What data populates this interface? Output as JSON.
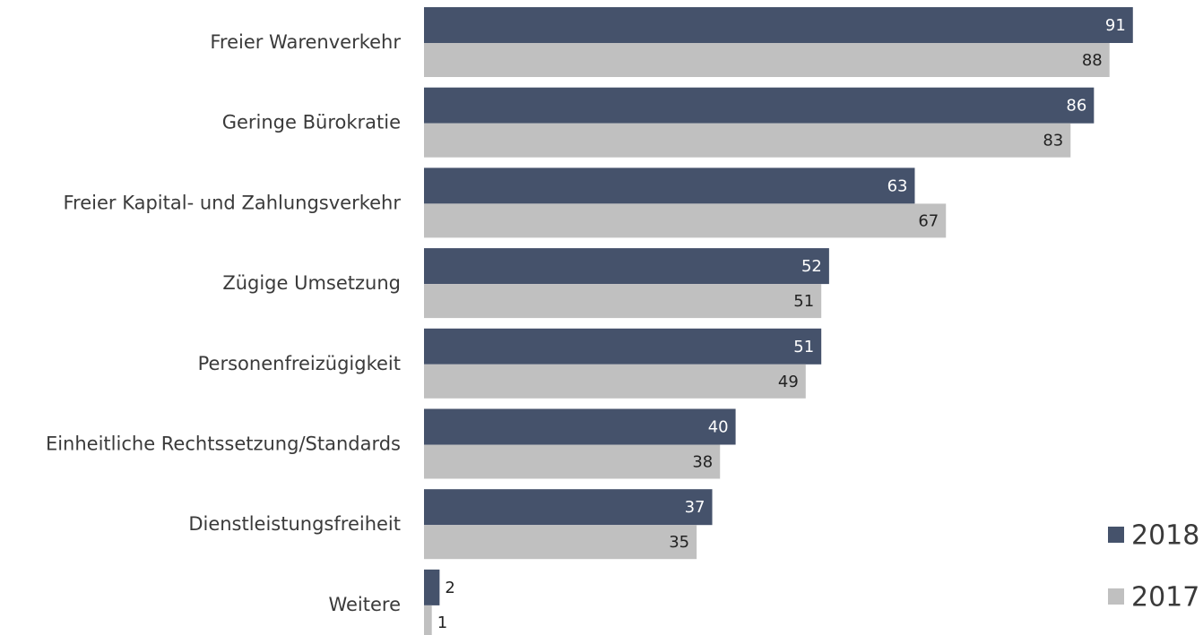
{
  "chart_data": {
    "type": "bar",
    "orientation": "horizontal",
    "categories": [
      "Freier Warenverkehr",
      "Geringe Bürokratie",
      "Freier Kapital- und Zahlungsverkehr",
      "Zügige Umsetzung",
      "Personenfreizügigkeit",
      "Einheitliche Rechtssetzung/Standards",
      "Dienstleistungsfreiheit",
      "Weitere"
    ],
    "series": [
      {
        "name": "2018",
        "color": "#45526b",
        "values": [
          91,
          86,
          63,
          52,
          51,
          40,
          37,
          2
        ]
      },
      {
        "name": "2017",
        "color": "#c0c0c0",
        "values": [
          88,
          83,
          67,
          51,
          49,
          38,
          35,
          1
        ]
      }
    ],
    "xlim": [
      0,
      100
    ],
    "legend": "bottom-right"
  }
}
